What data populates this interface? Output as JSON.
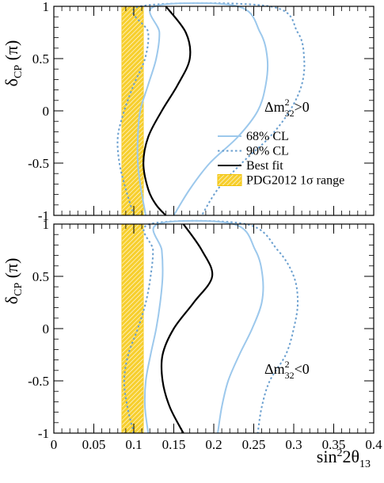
{
  "chart_data": [
    {
      "type": "line",
      "panel": "top",
      "ylabel": "δCP (π)",
      "ylim": [
        -1,
        1
      ],
      "xlim": [
        0,
        0.4
      ],
      "yticks": [
        "1",
        "0.5",
        "0",
        "-0.5",
        "-1"
      ],
      "annotation": "Δm²32>0",
      "band": {
        "name": "PDG2012 1σ range",
        "x": [
          0.085,
          0.112
        ],
        "color": "#f5c518"
      },
      "series": [
        {
          "name": "90% CL",
          "color": "#6a9fcf",
          "style": "dotted",
          "y": [
            -1,
            -0.75,
            -0.5,
            -0.25,
            0,
            0.25,
            0.5,
            0.75,
            1
          ],
          "x_left": [
            0.1,
            0.09,
            0.082,
            0.08,
            0.088,
            0.1,
            0.114,
            0.118,
            0.108
          ],
          "x_right": [
            0.185,
            0.205,
            0.235,
            0.27,
            0.295,
            0.31,
            0.313,
            0.305,
            0.27
          ]
        },
        {
          "name": "68% CL",
          "color": "#9cc8ec",
          "style": "solid",
          "y": [
            -1,
            -0.75,
            -0.5,
            -0.25,
            0,
            0.25,
            0.5,
            0.75,
            1
          ],
          "x_left": [
            0.115,
            0.109,
            0.105,
            0.105,
            0.108,
            0.118,
            0.128,
            0.132,
            0.126
          ],
          "x_right": [
            0.15,
            0.17,
            0.195,
            0.23,
            0.255,
            0.265,
            0.267,
            0.258,
            0.23
          ]
        },
        {
          "name": "Best fit",
          "color": "#000000",
          "style": "solid",
          "y": [
            -1,
            -0.9,
            -0.75,
            -0.5,
            -0.25,
            0,
            0.25,
            0.5,
            0.75,
            1
          ],
          "x": [
            0.14,
            0.128,
            0.118,
            0.112,
            0.118,
            0.135,
            0.155,
            0.17,
            0.165,
            0.14
          ]
        }
      ]
    },
    {
      "type": "line",
      "panel": "bottom",
      "ylabel": "δCP (π)",
      "xlabel": "sin²2θ13",
      "ylim": [
        -1,
        1
      ],
      "xlim": [
        0,
        0.4
      ],
      "yticks": [
        "1",
        "0.5",
        "0",
        "-0.5",
        "-1"
      ],
      "xticks": [
        "0",
        "0.05",
        "0.1",
        "0.15",
        "0.2",
        "0.25",
        "0.3",
        "0.35",
        "0.4"
      ],
      "annotation": "Δm²32<0",
      "band": {
        "name": "PDG2012 1σ range",
        "x": [
          0.085,
          0.112
        ],
        "color": "#f5c518"
      },
      "series": [
        {
          "name": "90% CL",
          "color": "#6a9fcf",
          "style": "dotted",
          "y": [
            -1,
            -0.75,
            -0.5,
            -0.25,
            0,
            0.25,
            0.5,
            0.75,
            1
          ],
          "x_left": [
            0.1,
            0.092,
            0.088,
            0.093,
            0.105,
            0.115,
            0.121,
            0.124,
            0.12
          ],
          "x_right": [
            0.255,
            0.26,
            0.27,
            0.29,
            0.3,
            0.305,
            0.3,
            0.28,
            0.24
          ]
        },
        {
          "name": "68% CL",
          "color": "#9cc8ec",
          "style": "solid",
          "y": [
            -1,
            -0.75,
            -0.5,
            -0.25,
            0,
            0.25,
            0.5,
            0.75,
            1
          ],
          "x_left": [
            0.118,
            0.114,
            0.115,
            0.121,
            0.128,
            0.133,
            0.136,
            0.135,
            0.13
          ],
          "x_right": [
            0.205,
            0.21,
            0.218,
            0.232,
            0.248,
            0.26,
            0.261,
            0.252,
            0.225
          ]
        },
        {
          "name": "Best fit",
          "color": "#000000",
          "style": "solid",
          "y": [
            -1,
            -0.75,
            -0.5,
            -0.25,
            0,
            0.25,
            0.5,
            0.75,
            1
          ],
          "x": [
            0.162,
            0.145,
            0.136,
            0.136,
            0.15,
            0.175,
            0.198,
            0.185,
            0.162
          ]
        }
      ]
    }
  ],
  "legend": {
    "placement": "right, top panel",
    "items": [
      {
        "label": "68% CL",
        "kind": "line",
        "color": "#9cc8ec",
        "style": "solid"
      },
      {
        "label": "90% CL",
        "kind": "line",
        "color": "#6a9fcf",
        "style": "dotted"
      },
      {
        "label": "Best fit",
        "kind": "line",
        "color": "#000000",
        "style": "solid"
      },
      {
        "label": "PDG2012 1σ range",
        "kind": "box",
        "color": "#f5c518"
      }
    ]
  }
}
